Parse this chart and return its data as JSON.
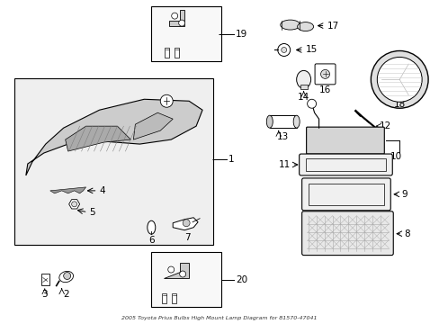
{
  "title": "2005 Toyota Prius Bulbs High Mount Lamp Diagram for 81570-47041",
  "background_color": "#ffffff",
  "line_color": "#000000",
  "fig_width": 4.89,
  "fig_height": 3.6,
  "dpi": 100
}
